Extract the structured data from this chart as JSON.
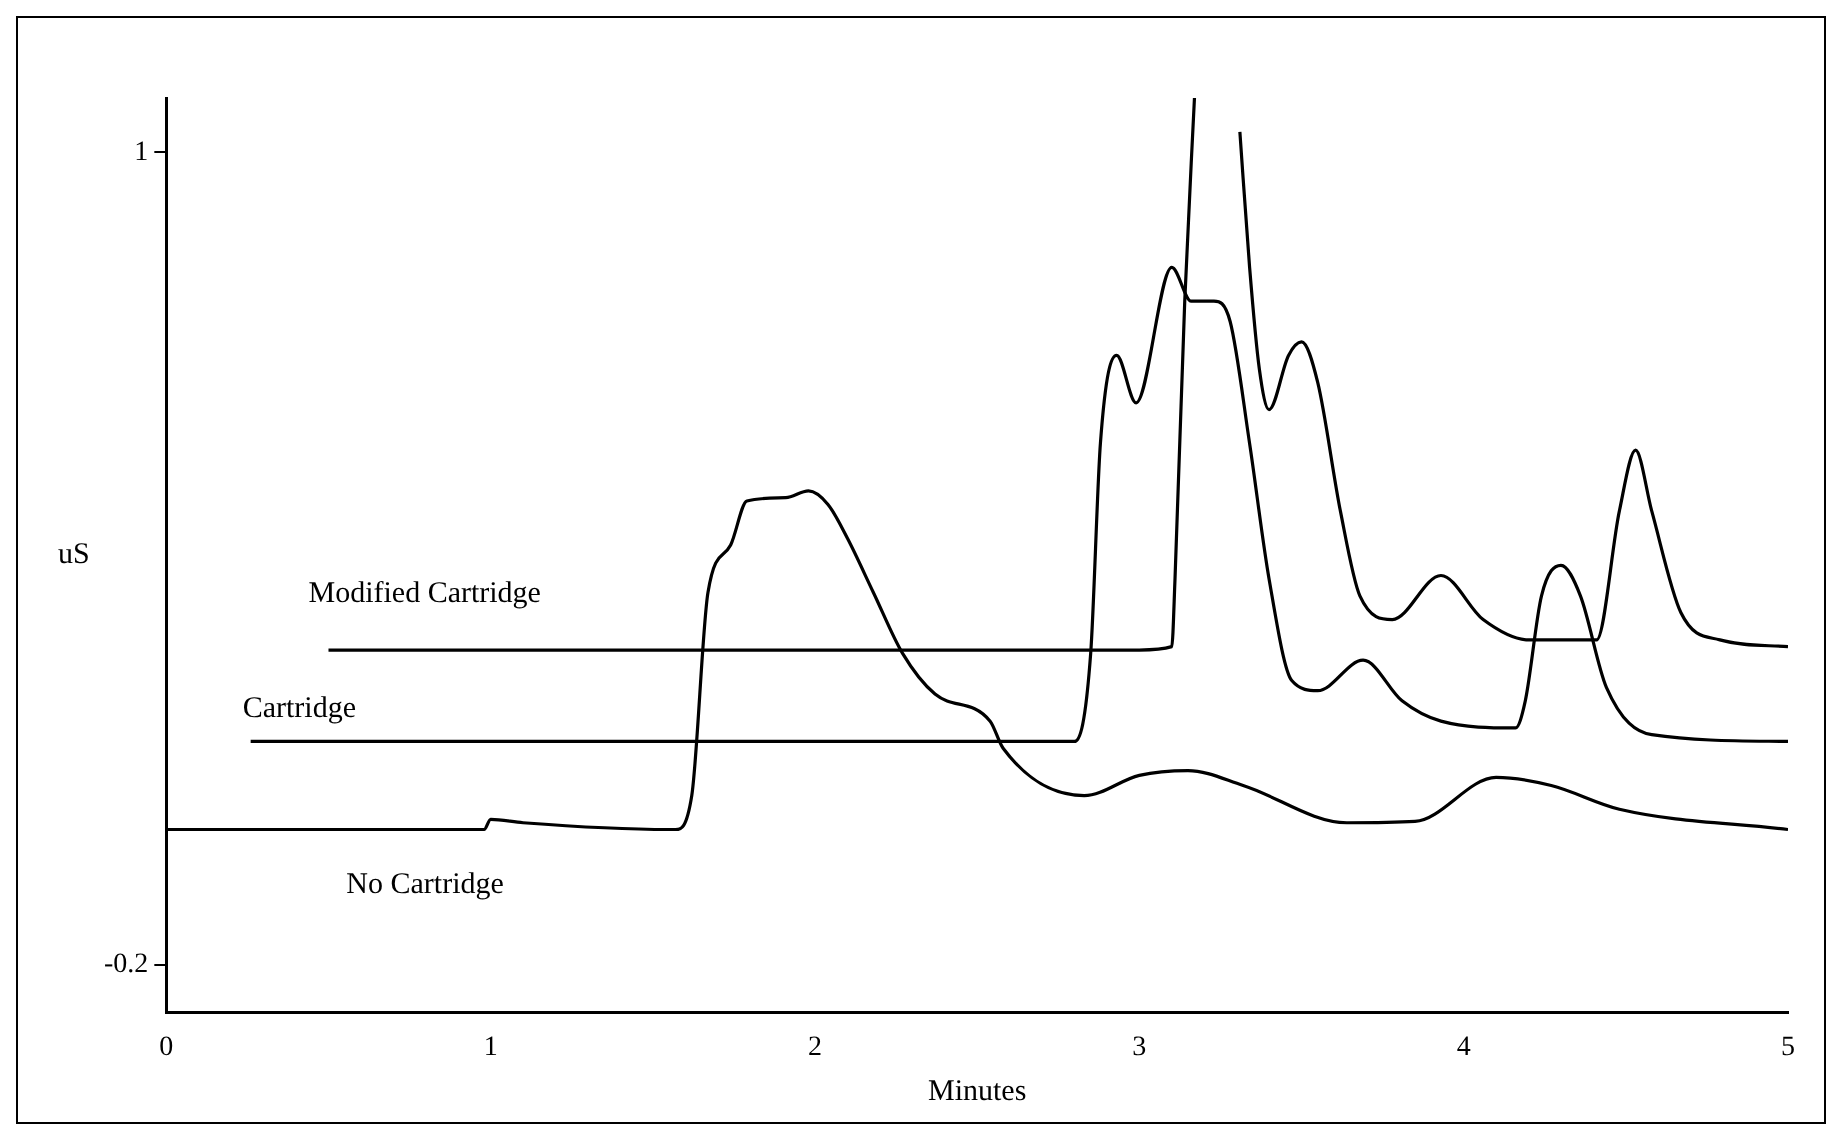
{
  "chart_data": {
    "type": "line",
    "xlabel": "Minutes",
    "ylabel": "uS",
    "xlim": [
      0,
      5
    ],
    "ylim": [
      -0.27,
      1.08
    ],
    "xticks": [
      0,
      1,
      2,
      3,
      4,
      5
    ],
    "yticks": [
      1,
      -0.2
    ],
    "grid": false,
    "legend": false,
    "marker": "none",
    "line_style": "solid",
    "series": [
      {
        "name": "Modified Cartridge",
        "color": "#000000",
        "x": [
          0.5,
          1.0,
          2.0,
          3.0,
          3.1,
          3.11,
          3.14,
          3.17,
          3.24,
          3.31,
          3.34,
          3.37,
          3.4,
          3.46,
          3.5,
          3.55,
          3.62,
          3.68,
          3.78,
          3.93,
          4.06,
          4.2,
          4.41,
          4.48,
          4.53,
          4.58,
          4.67,
          4.79,
          5.0
        ],
        "values": [
          0.265,
          0.265,
          0.265,
          0.265,
          0.27,
          0.37,
          0.78,
          1.08,
          null,
          1.03,
          0.83,
          0.68,
          0.62,
          0.7,
          0.72,
          0.66,
          0.47,
          0.345,
          0.31,
          0.375,
          0.31,
          0.28,
          0.28,
          0.47,
          0.56,
          0.47,
          0.32,
          0.28,
          0.27
        ]
      },
      {
        "name": "Cartridge",
        "color": "#000000",
        "x": [
          0.26,
          1.0,
          2.0,
          2.8,
          2.85,
          2.88,
          2.93,
          2.99,
          3.1,
          3.16,
          3.23,
          3.28,
          3.34,
          3.4,
          3.47,
          3.55,
          3.69,
          3.81,
          3.93,
          4.16,
          4.19,
          4.24,
          4.3,
          4.36,
          4.44,
          4.58,
          5.0
        ],
        "values": [
          0.13,
          0.13,
          0.13,
          0.13,
          0.26,
          0.57,
          0.7,
          0.63,
          0.83,
          0.78,
          0.78,
          0.75,
          0.57,
          0.37,
          0.22,
          0.205,
          0.25,
          0.19,
          0.16,
          0.15,
          0.19,
          0.345,
          0.39,
          0.345,
          0.21,
          0.14,
          0.13
        ]
      },
      {
        "name": "No Cartridge",
        "color": "#000000",
        "x": [
          0,
          0.98,
          1.0,
          1.1,
          1.55,
          1.57,
          1.62,
          1.67,
          1.74,
          1.79,
          1.91,
          1.98,
          2.04,
          2.1,
          2.18,
          2.27,
          2.37,
          2.54,
          2.58,
          2.83,
          3.0,
          3.15,
          3.32,
          3.64,
          3.85,
          4.1,
          4.27,
          4.48,
          5.0
        ],
        "values": [
          0,
          0,
          0.015,
          0.01,
          0,
          0,
          0.05,
          0.35,
          0.42,
          0.485,
          0.49,
          0.5,
          0.48,
          0.43,
          0.35,
          0.26,
          0.2,
          0.16,
          0.12,
          0.05,
          0.08,
          0.087,
          0.065,
          0.01,
          0.012,
          0.077,
          0.065,
          0.03,
          0
        ]
      }
    ]
  }
}
